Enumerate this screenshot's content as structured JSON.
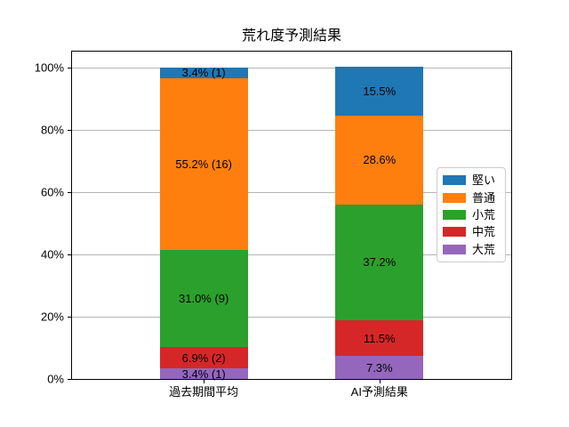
{
  "chart_data": {
    "type": "bar",
    "stacked": true,
    "title": "荒れ度予測結果",
    "categories": [
      "過去期間平均",
      "AI予測結果"
    ],
    "series": [
      {
        "name": "堅い",
        "color": "#1f77b4",
        "values": [
          3.4,
          15.5
        ],
        "labels": [
          "3.4% (1)",
          "15.5%"
        ]
      },
      {
        "name": "普通",
        "color": "#ff7f0e",
        "values": [
          55.2,
          28.6
        ],
        "labels": [
          "55.2% (16)",
          "28.6%"
        ]
      },
      {
        "name": "小荒",
        "color": "#2ca02c",
        "values": [
          31.0,
          37.2
        ],
        "labels": [
          "31.0% (9)",
          "37.2%"
        ]
      },
      {
        "name": "中荒",
        "color": "#d62728",
        "values": [
          6.9,
          11.5
        ],
        "labels": [
          "6.9% (2)",
          "11.5%"
        ]
      },
      {
        "name": "大荒",
        "color": "#9467bd",
        "values": [
          3.4,
          7.3
        ],
        "labels": [
          "3.4% (1)",
          "7.3%"
        ]
      }
    ],
    "stack_order_bottom_to_top": [
      "大荒",
      "中荒",
      "小荒",
      "普通",
      "堅い"
    ],
    "legend": {
      "entries": [
        "堅い",
        "普通",
        "小荒",
        "中荒",
        "大荒"
      ],
      "position": "center right"
    },
    "y_ticks": [
      {
        "label": "0%",
        "value": 0
      },
      {
        "label": "20%",
        "value": 20
      },
      {
        "label": "40%",
        "value": 40
      },
      {
        "label": "60%",
        "value": 60
      },
      {
        "label": "80%",
        "value": 80
      },
      {
        "label": "100%",
        "value": 100
      }
    ],
    "ylim": [
      0,
      105
    ],
    "grid": "horizontal-y",
    "colors": {
      "grid": "#b4b4b4",
      "axis": "#000000",
      "text": "#000000",
      "background": "#ffffff"
    }
  }
}
